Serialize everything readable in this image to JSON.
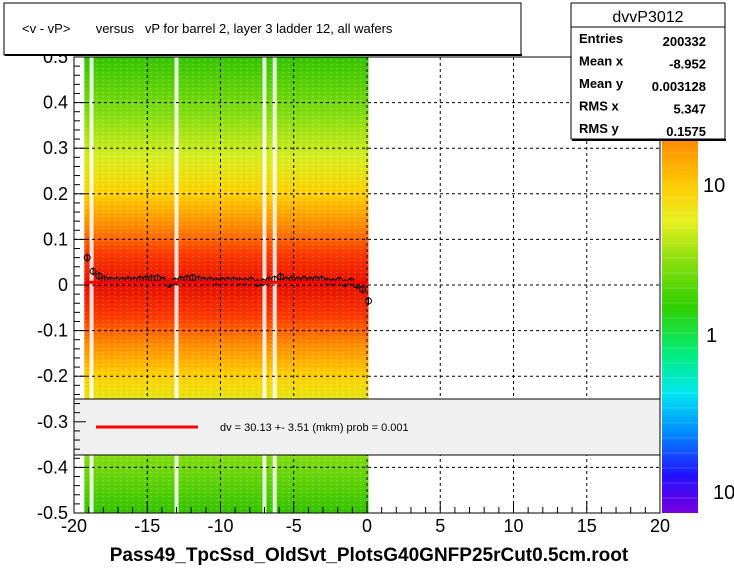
{
  "title_box": {
    "text": "<v - vP>       versus   vP for barrel 2, layer 3 ladder 12, all wafers"
  },
  "stats": {
    "name": "dvvP3012",
    "rows": [
      {
        "label": "Entries",
        "value": "200332"
      },
      {
        "label": "Mean x",
        "value": "-8.952"
      },
      {
        "label": "Mean y",
        "value": "0.003128"
      },
      {
        "label": "RMS x",
        "value": "5.347"
      },
      {
        "label": "RMS y",
        "value": "0.1575"
      }
    ]
  },
  "legend": {
    "text": "dv =   30.13 +-  3.51 (mkm) prob = 0.001",
    "line_color": "#ff0000"
  },
  "footer": {
    "text": "Pass49_TpcSsd_OldSvt_PlotsG40GNFP25rCut0.5cm.root"
  },
  "colorbar": {
    "labels": [
      "10",
      "1",
      "10"
    ],
    "scale": "log"
  },
  "chart_data": {
    "type": "heatmap",
    "xlim": [
      -20,
      20
    ],
    "ylim": [
      -0.5,
      0.5
    ],
    "xticks": [
      "-20",
      "-15",
      "-10",
      "-5",
      "0",
      "5",
      "10",
      "15",
      "20"
    ],
    "yticks": [
      "-0.5",
      "-0.4",
      "-0.3",
      "-0.2",
      "-0.1",
      "0",
      "0.1",
      "0.2",
      "0.3",
      "0.4",
      "0.5"
    ],
    "grid": true,
    "fill_x_range": [
      -19.3,
      0.1
    ],
    "gap_columns_x": [
      -18.8,
      -13.0,
      -7.0,
      -6.3
    ],
    "profile": {
      "x": [
        -19.1,
        -18.7,
        -18.3,
        -17.9,
        -17.5,
        -17.1,
        -16.7,
        -16.3,
        -15.9,
        -15.5,
        -15.1,
        -14.7,
        -14.3,
        -13.9,
        -13.5,
        -13.1,
        -12.7,
        -12.3,
        -11.9,
        -11.5,
        -11.1,
        -10.7,
        -10.3,
        -9.9,
        -9.5,
        -9.1,
        -8.7,
        -8.3,
        -7.9,
        -7.5,
        -7.1,
        -6.7,
        -6.3,
        -5.9,
        -5.5,
        -5.1,
        -4.7,
        -4.3,
        -3.9,
        -3.5,
        -3.1,
        -2.7,
        -2.3,
        -1.9,
        -1.5,
        -1.1,
        -0.7,
        -0.3,
        0.1
      ],
      "y": [
        0.06,
        0.03,
        0.02,
        0.012,
        0.01,
        0.01,
        0.01,
        0.011,
        0.01,
        0.012,
        0.012,
        0.014,
        0.015,
        0.01,
        0.002,
        0.008,
        0.012,
        0.014,
        0.016,
        0.012,
        0.01,
        0.01,
        0.008,
        0.009,
        0.01,
        0.01,
        0.008,
        0.008,
        0.01,
        0.004,
        0.006,
        0.01,
        0.012,
        0.018,
        0.01,
        0.012,
        0.01,
        0.012,
        0.01,
        0.012,
        0.012,
        0.008,
        0.006,
        0.01,
        0.004,
        0.008,
        0.0,
        -0.01,
        -0.035
      ]
    },
    "fit": {
      "x": [
        -19.3,
        0.1
      ],
      "y": [
        0.006,
        0.006
      ],
      "color": "#ff0000"
    }
  }
}
